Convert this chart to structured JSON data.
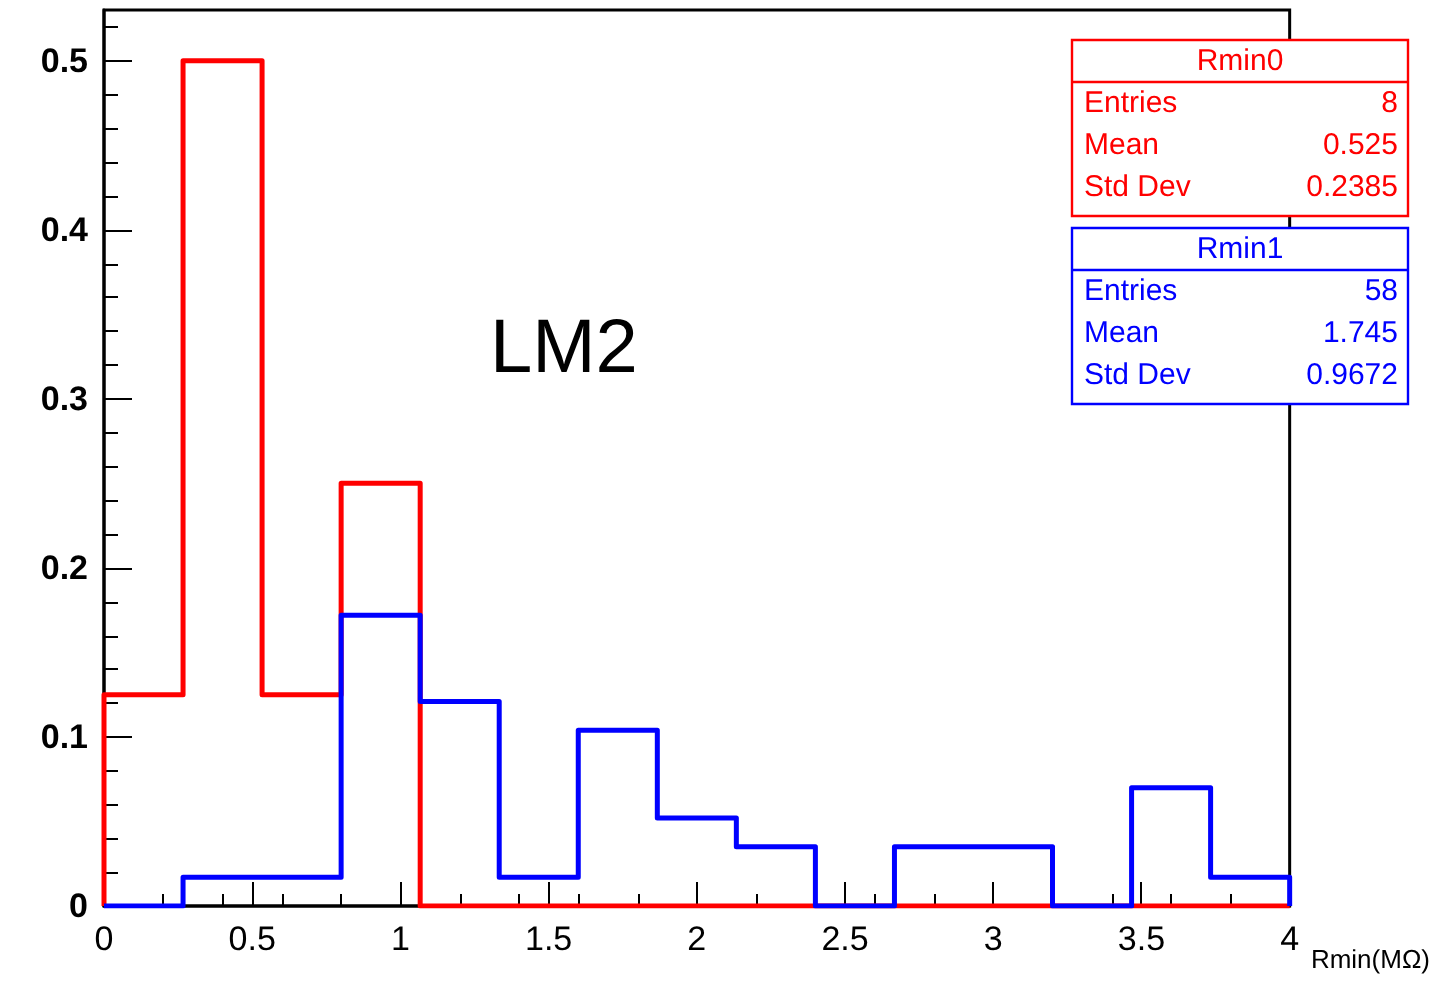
{
  "chart_data": {
    "type": "histogram",
    "xlabel": "Rmin(MΩ)",
    "bins": [
      0,
      0.2667,
      0.5333,
      0.8,
      1.0667,
      1.3333,
      1.6,
      1.8667,
      2.1333,
      2.4,
      2.6667,
      2.9333,
      3.2,
      3.4667,
      3.7333,
      4
    ],
    "series": [
      {
        "name": "Rmin0",
        "color": "#ff0000",
        "values": [
          0.125,
          0.5,
          0.125,
          0.25,
          0,
          0,
          0,
          0,
          0,
          0,
          0,
          0,
          0,
          0,
          0
        ]
      },
      {
        "name": "Rmin1",
        "color": "#0000ff",
        "values": [
          0,
          0.017,
          0.017,
          0.172,
          0.121,
          0.017,
          0.104,
          0.052,
          0.035,
          0,
          0.035,
          0.035,
          0,
          0.07,
          0.017
        ]
      }
    ],
    "annotations": [
      "LM2",
      "Entries",
      "8",
      "Mean",
      "0.525",
      "Std Dev",
      "0.2385",
      "Entries",
      "58",
      "Mean",
      "1.745",
      "Std Dev",
      "0.9672"
    ],
    "xlim": [
      0,
      4
    ],
    "xticks": [
      0,
      0.5,
      1,
      1.5,
      2,
      2.5,
      3,
      3.5,
      4
    ],
    "ylim": [
      0,
      0.53
    ],
    "yticks": [
      0,
      0.1,
      0.2,
      0.3,
      0.4,
      0.5
    ],
    "grid": false,
    "legend": "top right"
  }
}
